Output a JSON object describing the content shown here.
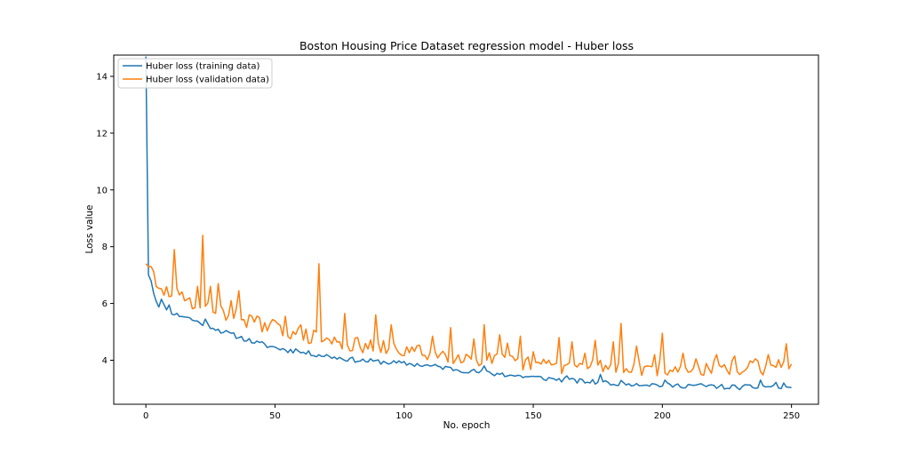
{
  "chart_data": {
    "type": "line",
    "title": "Boston Housing Price Dataset regression model - Huber loss",
    "xlabel": "No. epoch",
    "ylabel": "Loss value",
    "xlim": [
      -12.45,
      260.45
    ],
    "ylim": [
      2.45,
      14.75
    ],
    "xticks": [
      0,
      50,
      100,
      150,
      200,
      250
    ],
    "yticks": [
      4,
      6,
      8,
      10,
      12,
      14
    ],
    "grid": false,
    "legend_position": "top-left",
    "series": [
      {
        "name": "Huber loss (training data)",
        "color": "#1f77b4",
        "keypoints": [
          [
            0,
            14.7
          ],
          [
            1,
            7.0
          ],
          [
            2,
            6.8
          ],
          [
            3,
            6.4
          ],
          [
            4,
            6.1
          ],
          [
            5,
            5.95
          ],
          [
            6,
            6.1
          ],
          [
            7,
            5.9
          ],
          [
            8,
            5.85
          ],
          [
            9,
            5.9
          ],
          [
            10,
            5.7
          ],
          [
            12,
            5.6
          ],
          [
            15,
            5.55
          ],
          [
            20,
            5.35
          ],
          [
            25,
            5.2
          ],
          [
            30,
            5.0
          ],
          [
            35,
            4.85
          ],
          [
            40,
            4.7
          ],
          [
            45,
            4.55
          ],
          [
            50,
            4.45
          ],
          [
            55,
            4.35
          ],
          [
            60,
            4.28
          ],
          [
            65,
            4.22
          ],
          [
            70,
            4.15
          ],
          [
            75,
            4.08
          ],
          [
            80,
            4.02
          ],
          [
            85,
            3.98
          ],
          [
            90,
            3.95
          ],
          [
            95,
            3.92
          ],
          [
            100,
            3.88
          ],
          [
            105,
            3.85
          ],
          [
            110,
            3.8
          ],
          [
            115,
            3.75
          ],
          [
            120,
            3.68
          ],
          [
            125,
            3.63
          ],
          [
            130,
            3.57
          ],
          [
            135,
            3.52
          ],
          [
            140,
            3.48
          ],
          [
            145,
            3.44
          ],
          [
            150,
            3.4
          ],
          [
            155,
            3.36
          ],
          [
            160,
            3.32
          ],
          [
            165,
            3.28
          ],
          [
            170,
            3.25
          ],
          [
            175,
            3.22
          ],
          [
            180,
            3.2
          ],
          [
            185,
            3.2
          ],
          [
            190,
            3.17
          ],
          [
            195,
            3.15
          ],
          [
            200,
            3.12
          ],
          [
            205,
            3.1
          ],
          [
            210,
            3.12
          ],
          [
            215,
            3.1
          ],
          [
            220,
            3.08
          ],
          [
            225,
            3.06
          ],
          [
            230,
            3.05
          ],
          [
            235,
            3.05
          ],
          [
            240,
            3.08
          ],
          [
            245,
            3.06
          ],
          [
            250,
            3.12
          ]
        ],
        "noise": 0.09,
        "spikes": [
          [
            6,
            6.15
          ],
          [
            9,
            5.95
          ],
          [
            23,
            5.45
          ],
          [
            45,
            4.65
          ],
          [
            58,
            4.4
          ],
          [
            70,
            4.2
          ],
          [
            131,
            3.8
          ],
          [
            138,
            3.55
          ],
          [
            163,
            3.45
          ],
          [
            176,
            3.5
          ],
          [
            181,
            3.15
          ],
          [
            201,
            3.3
          ],
          [
            226,
            3.0
          ],
          [
            238,
            3.3
          ],
          [
            244,
            3.22
          ],
          [
            246,
            3.0
          ],
          [
            247,
            3.2
          ],
          [
            249,
            3.05
          ]
        ],
        "seed": 11
      },
      {
        "name": "Huber loss (validation data)",
        "color": "#ff7f0e",
        "keypoints": [
          [
            0,
            7.4
          ],
          [
            1,
            7.3
          ],
          [
            2,
            7.3
          ],
          [
            3,
            6.9
          ],
          [
            4,
            6.5
          ],
          [
            5,
            6.4
          ],
          [
            7,
            6.4
          ],
          [
            10,
            6.4
          ],
          [
            15,
            6.1
          ],
          [
            20,
            5.95
          ],
          [
            25,
            5.8
          ],
          [
            30,
            5.7
          ],
          [
            35,
            5.55
          ],
          [
            40,
            5.4
          ],
          [
            45,
            5.3
          ],
          [
            50,
            5.15
          ],
          [
            55,
            5.05
          ],
          [
            60,
            4.9
          ],
          [
            65,
            4.8
          ],
          [
            70,
            4.7
          ],
          [
            75,
            4.6
          ],
          [
            80,
            4.55
          ],
          [
            85,
            4.5
          ],
          [
            90,
            4.45
          ],
          [
            95,
            4.4
          ],
          [
            100,
            4.35
          ],
          [
            105,
            4.3
          ],
          [
            110,
            4.25
          ],
          [
            115,
            4.2
          ],
          [
            120,
            4.15
          ],
          [
            125,
            4.1
          ],
          [
            130,
            4.05
          ],
          [
            135,
            4.0
          ],
          [
            140,
            3.95
          ],
          [
            145,
            3.9
          ],
          [
            150,
            3.85
          ],
          [
            155,
            3.8
          ],
          [
            160,
            3.8
          ],
          [
            165,
            3.8
          ],
          [
            170,
            3.78
          ],
          [
            175,
            3.78
          ],
          [
            180,
            3.75
          ],
          [
            185,
            3.75
          ],
          [
            190,
            3.75
          ],
          [
            195,
            3.72
          ],
          [
            200,
            3.72
          ],
          [
            205,
            3.7
          ],
          [
            210,
            3.7
          ],
          [
            215,
            3.7
          ],
          [
            220,
            3.72
          ],
          [
            225,
            3.72
          ],
          [
            230,
            3.75
          ],
          [
            235,
            3.72
          ],
          [
            240,
            3.75
          ],
          [
            245,
            3.75
          ],
          [
            248,
            4.5
          ],
          [
            250,
            3.65
          ]
        ],
        "noise": 0.28,
        "spikes": [
          [
            11,
            7.9
          ],
          [
            13,
            6.3
          ],
          [
            17,
            6.2
          ],
          [
            19,
            5.85
          ],
          [
            20,
            6.6
          ],
          [
            22,
            8.4
          ],
          [
            23,
            5.9
          ],
          [
            25,
            6.6
          ],
          [
            26,
            5.7
          ],
          [
            27,
            5.65
          ],
          [
            28,
            6.7
          ],
          [
            30,
            5.75
          ],
          [
            33,
            6.1
          ],
          [
            36,
            6.45
          ],
          [
            40,
            5.6
          ],
          [
            45,
            5.0
          ],
          [
            54,
            5.55
          ],
          [
            60,
            5.25
          ],
          [
            67,
            7.4
          ],
          [
            68,
            4.65
          ],
          [
            77,
            5.65
          ],
          [
            83,
            4.45
          ],
          [
            89,
            5.6
          ],
          [
            95,
            5.25
          ],
          [
            111,
            4.85
          ],
          [
            118,
            5.15
          ],
          [
            127,
            4.75
          ],
          [
            131,
            5.25
          ],
          [
            132,
            4.0
          ],
          [
            137,
            4.9
          ],
          [
            140,
            4.6
          ],
          [
            145,
            4.85
          ],
          [
            150,
            4.3
          ],
          [
            156,
            4.0
          ],
          [
            160,
            4.8
          ],
          [
            165,
            4.65
          ],
          [
            170,
            4.25
          ],
          [
            174,
            4.7
          ],
          [
            176,
            4.0
          ],
          [
            181,
            4.65
          ],
          [
            183,
            3.9
          ],
          [
            184,
            5.3
          ],
          [
            190,
            4.5
          ],
          [
            194,
            3.8
          ],
          [
            197,
            4.2
          ],
          [
            200,
            4.95
          ],
          [
            201,
            3.55
          ],
          [
            204,
            3.6
          ],
          [
            208,
            4.25
          ],
          [
            213,
            4.05
          ],
          [
            218,
            3.7
          ],
          [
            221,
            4.2
          ],
          [
            225,
            3.65
          ],
          [
            228,
            4.15
          ],
          [
            233,
            3.75
          ],
          [
            236,
            4.05
          ],
          [
            238,
            3.6
          ],
          [
            241,
            4.2
          ],
          [
            244,
            3.75
          ],
          [
            247,
            3.95
          ],
          [
            249,
            3.7
          ]
        ],
        "seed": 29
      }
    ]
  }
}
